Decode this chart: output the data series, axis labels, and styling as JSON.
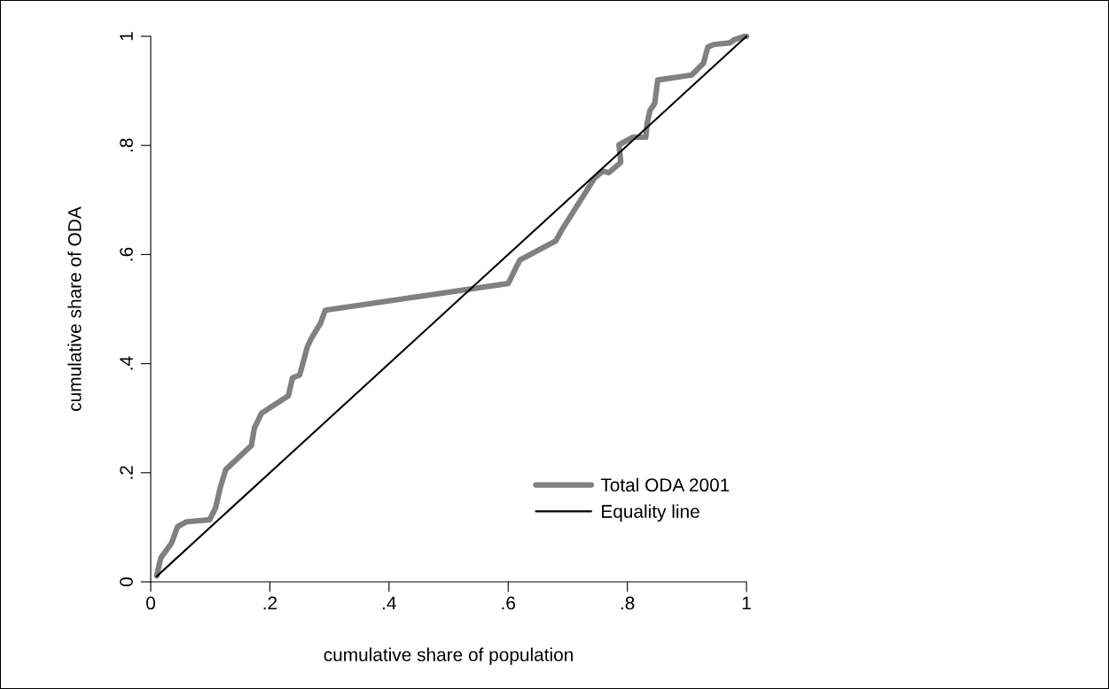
{
  "chart_data": {
    "type": "line",
    "xlabel": "cumulative share of population",
    "ylabel": "cumulative share of ODA",
    "xlim": [
      0,
      1
    ],
    "ylim": [
      0,
      1
    ],
    "xticks": [
      {
        "value": 0,
        "label": "0"
      },
      {
        "value": 0.2,
        "label": ".2"
      },
      {
        "value": 0.4,
        "label": ".4"
      },
      {
        "value": 0.6,
        "label": ".6"
      },
      {
        "value": 0.8,
        "label": ".8"
      },
      {
        "value": 1,
        "label": "1"
      }
    ],
    "yticks": [
      {
        "value": 0,
        "label": "0"
      },
      {
        "value": 0.2,
        "label": ".2"
      },
      {
        "value": 0.4,
        "label": ".4"
      },
      {
        "value": 0.6,
        "label": ".6"
      },
      {
        "value": 0.8,
        "label": ".8"
      },
      {
        "value": 1,
        "label": "1"
      }
    ],
    "grid": false,
    "legend": "bottom right",
    "marker": "none",
    "series": [
      {
        "name": "Total ODA 2001",
        "color": "#808080",
        "x": [
          0.01,
          0.017,
          0.035,
          0.045,
          0.06,
          0.099,
          0.109,
          0.117,
          0.126,
          0.169,
          0.174,
          0.186,
          0.231,
          0.238,
          0.25,
          0.263,
          0.27,
          0.285,
          0.293,
          0.6,
          0.605,
          0.615,
          0.62,
          0.68,
          0.69,
          0.745,
          0.759,
          0.769,
          0.789,
          0.786,
          0.809,
          0.831,
          0.833,
          0.838,
          0.846,
          0.851,
          0.908,
          0.928,
          0.935,
          0.945,
          0.972,
          0.98,
          0.997,
          1.0
        ],
        "values": [
          0.011,
          0.044,
          0.071,
          0.101,
          0.11,
          0.114,
          0.136,
          0.174,
          0.206,
          0.25,
          0.282,
          0.309,
          0.341,
          0.374,
          0.379,
          0.431,
          0.447,
          0.474,
          0.498,
          0.547,
          0.558,
          0.58,
          0.59,
          0.625,
          0.645,
          0.74,
          0.753,
          0.75,
          0.769,
          0.801,
          0.815,
          0.815,
          0.839,
          0.864,
          0.877,
          0.92,
          0.929,
          0.951,
          0.98,
          0.985,
          0.988,
          0.994,
          1.0,
          1.0
        ]
      },
      {
        "name": "Equality line",
        "color": "#000000",
        "x": [
          0.01,
          1.0
        ],
        "values": [
          0.01,
          1.0
        ]
      }
    ]
  }
}
